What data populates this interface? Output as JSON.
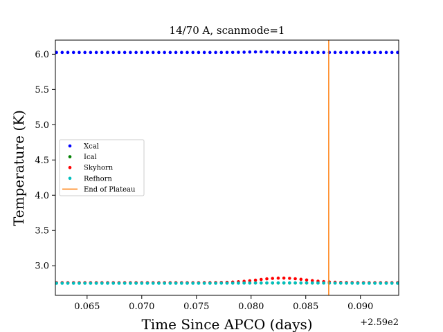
{
  "chart_data": {
    "type": "scatter",
    "title": "14/70 A, scanmode=1",
    "xlabel": "Time Since APCO (days)",
    "ylabel": "Temperature (K)",
    "x_offset_label": "+2.59e2",
    "xlim": [
      0.0621,
      0.0935
    ],
    "ylim": [
      2.58,
      6.2
    ],
    "x_ticks": [
      0.065,
      0.07,
      0.075,
      0.08,
      0.085,
      0.09
    ],
    "x_tick_labels": [
      "0.065",
      "0.070",
      "0.075",
      "0.080",
      "0.085",
      "0.090"
    ],
    "y_ticks": [
      3.0,
      3.5,
      4.0,
      4.5,
      5.0,
      5.5,
      6.0
    ],
    "y_tick_labels": [
      "3.0",
      "3.5",
      "4.0",
      "4.5",
      "5.0",
      "5.5",
      "6.0"
    ],
    "x_start": 0.0622,
    "x_step": 0.00052,
    "n_points": 61,
    "grid": false,
    "legend_placement": "center-left",
    "end_of_plateau_x": 0.0871,
    "series": [
      {
        "name": "Xcal",
        "color": "#0000ff",
        "kind": "points",
        "base": 6.025,
        "bump": {
          "center": 0.0808,
          "width": 0.0012,
          "height": 0.008
        }
      },
      {
        "name": "Ical",
        "color": "#008000",
        "kind": "points",
        "base": 2.755,
        "bump": null
      },
      {
        "name": "Skyhorn",
        "color": "#ff0000",
        "kind": "points",
        "base": 2.76,
        "bump": {
          "center": 0.0828,
          "width": 0.0022,
          "height": 0.065
        }
      },
      {
        "name": "Refhorn",
        "color": "#00bfbf",
        "kind": "points",
        "base": 2.752,
        "bump": {
          "center": 0.0832,
          "width": 0.0026,
          "height": 0.005
        }
      },
      {
        "name": "End of Plateau",
        "color": "#ff7f0e",
        "kind": "vline"
      }
    ]
  }
}
